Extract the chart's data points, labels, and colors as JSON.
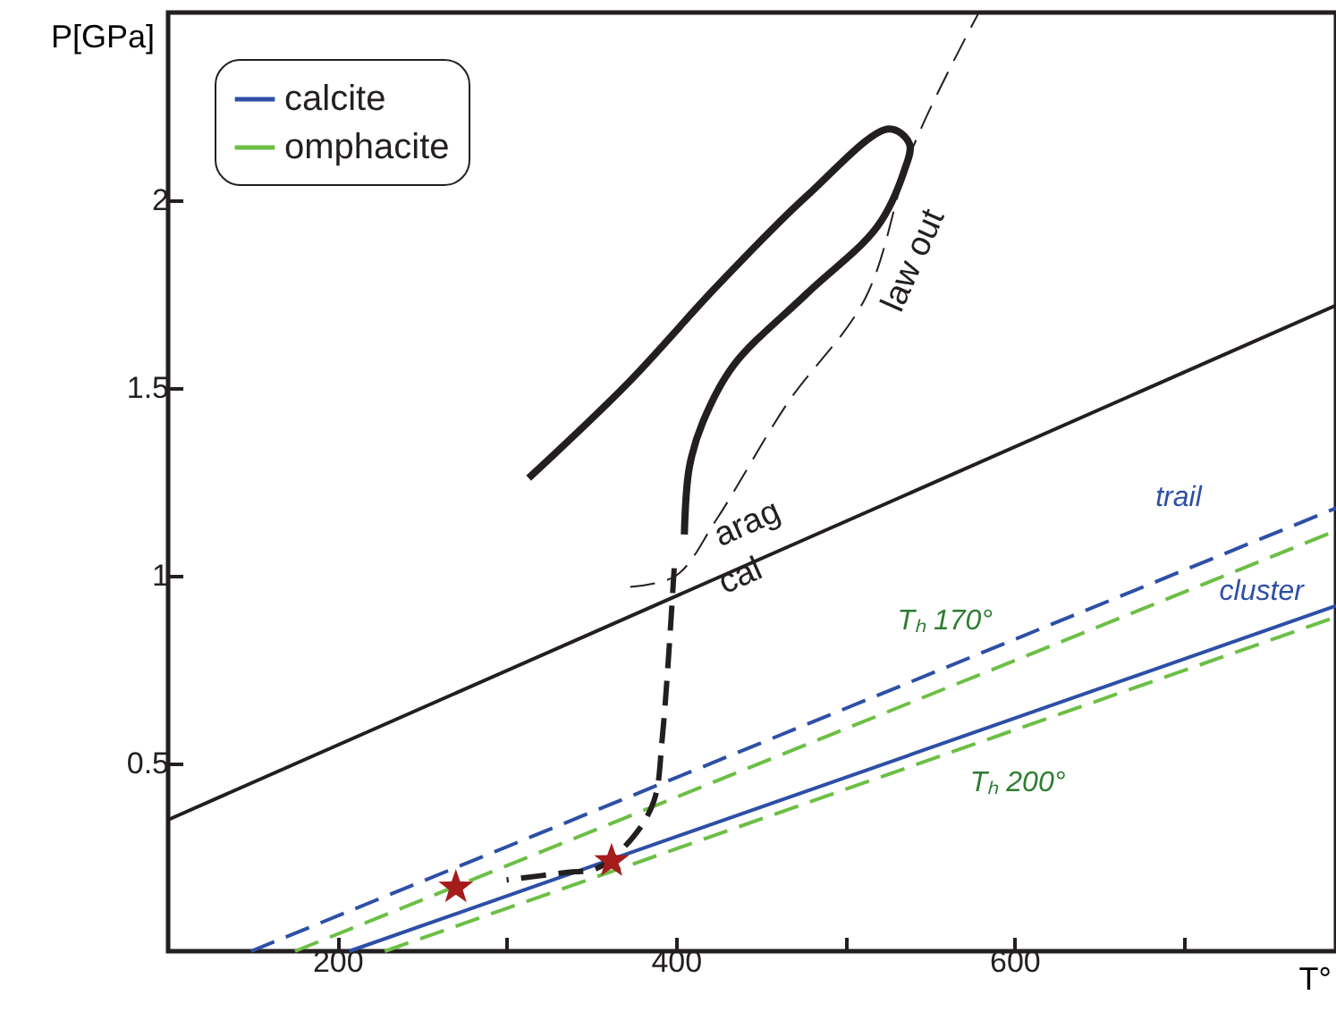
{
  "chart_data": {
    "type": "line",
    "ylabel": "P[GPa]",
    "xlabel": "T°",
    "xlim": [
      100,
      790
    ],
    "ylim": [
      0,
      2.5
    ],
    "xticks": [
      200,
      {
        "value": 300,
        "label": null
      },
      400,
      {
        "value": 500,
        "label": null
      },
      600,
      {
        "value": 700,
        "label": null
      }
    ],
    "yticks": [
      0.5,
      1,
      1.5,
      2
    ],
    "grid": false,
    "legend": "top left",
    "series": [
      {
        "name": "calcite",
        "color": "#2d4fa6",
        "x": [
          207,
          790
        ],
        "values": [
          0,
          0.92
        ],
        "line_style": "solid"
      },
      {
        "color": "#2d4fa6",
        "x": [
          149,
          790
        ],
        "values": [
          0,
          1.18
        ],
        "line_style": "dashed"
      },
      {
        "name": "omphacite",
        "color": "#6cbf45",
        "x": [
          175,
          790
        ],
        "values": [
          0,
          1.12
        ],
        "line_style": "dashed"
      },
      {
        "color": "#6cbf45",
        "x": [
          228,
          790
        ],
        "values": [
          0,
          0.89
        ],
        "line_style": "dashed"
      },
      {
        "color": "#231f20",
        "x": [
          100,
          790
        ],
        "values": [
          0.35,
          1.72
        ],
        "line_style": "solid"
      },
      {
        "color": "#231f20",
        "x": [
          373,
          400,
          424,
          466,
          512,
          540,
          579
        ],
        "values": [
          0.97,
          1.0,
          1.15,
          1.46,
          1.74,
          2.14,
          2.5
        ],
        "line_style": "dashed"
      },
      {
        "color": "#231f20",
        "x": [
          313,
          371,
          424,
          477,
          526,
          538,
          535,
          519,
          477,
          434,
          416,
          408,
          405
        ],
        "values": [
          1.26,
          1.51,
          1.77,
          2.01,
          2.19,
          2.15,
          2.08,
          1.93,
          1.75,
          1.56,
          1.41,
          1.29,
          1.11
        ],
        "line_style": "solid"
      },
      {
        "color": "#231f20",
        "x": [
          399,
          392,
          387,
          374,
          353,
          336,
          300
        ],
        "values": [
          1.02,
          0.57,
          0.4,
          0.3,
          0.22,
          0.21,
          0.19
        ],
        "line_style": "dashed"
      },
      {
        "type": "scatter",
        "color": "#a51c1c",
        "marker": "star",
        "x": [
          270,
          362
        ],
        "values": [
          0.17,
          0.24
        ]
      }
    ],
    "annotations": [
      "arag",
      "cal",
      "law out",
      "trail",
      "cluster",
      "Tₕ 170°",
      "Tₕ 200°"
    ]
  }
}
